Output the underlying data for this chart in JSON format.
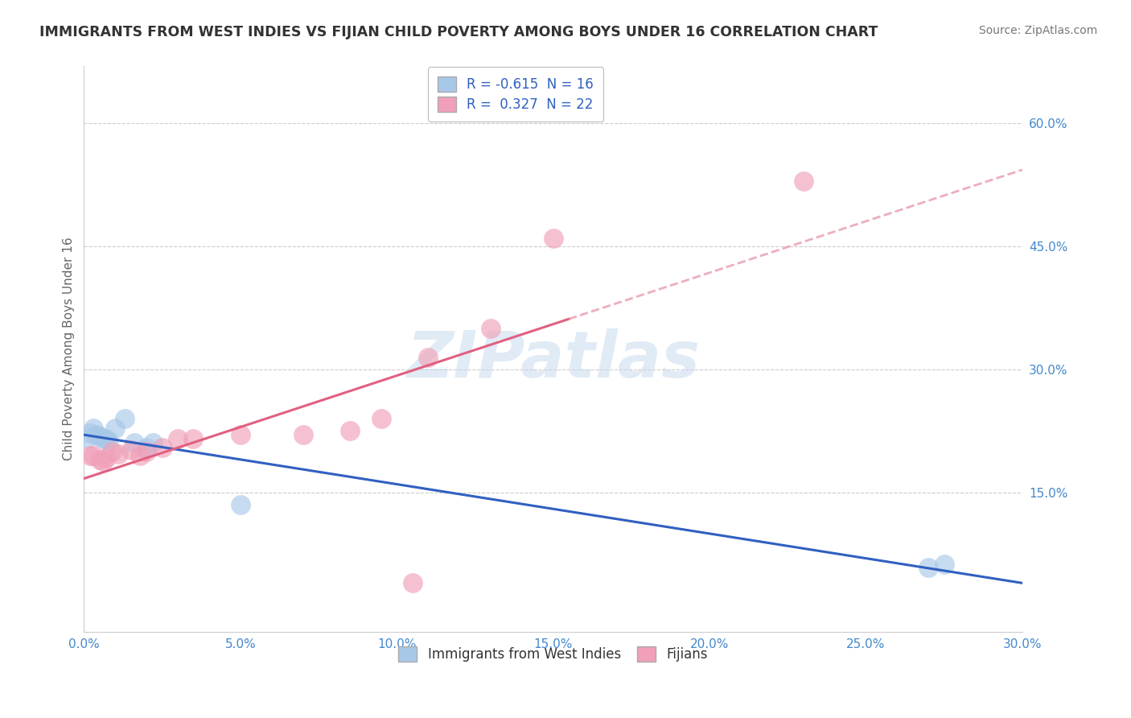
{
  "title": "IMMIGRANTS FROM WEST INDIES VS FIJIAN CHILD POVERTY AMONG BOYS UNDER 16 CORRELATION CHART",
  "source": "Source: ZipAtlas.com",
  "ylabel": "Child Poverty Among Boys Under 16",
  "xlim": [
    0.0,
    0.3
  ],
  "ylim": [
    -0.02,
    0.67
  ],
  "xticks": [
    0.0,
    0.05,
    0.1,
    0.15,
    0.2,
    0.25,
    0.3
  ],
  "xtick_labels": [
    "0.0%",
    "5.0%",
    "10.0%",
    "15.0%",
    "20.0%",
    "25.0%",
    "30.0%"
  ],
  "ytick_vals_right": [
    0.15,
    0.3,
    0.45,
    0.6
  ],
  "ytick_labels_right": [
    "15.0%",
    "30.0%",
    "45.0%",
    "60.0%"
  ],
  "background_color": "#ffffff",
  "blue_scatter_color": "#a8c8e8",
  "pink_scatter_color": "#f0a0b8",
  "blue_line_color": "#3060c0",
  "pink_line_color": "#e06080",
  "pink_dash_color": "#e8a0b0",
  "legend_R_blue": "-0.615",
  "legend_N_blue": "16",
  "legend_R_pink": " 0.327",
  "legend_N_pink": "22",
  "grid_color": "#cccccc",
  "title_color": "#333333",
  "axis_tick_color": "#4488cc",
  "blue_points_x": [
    0.001,
    0.002,
    0.003,
    0.004,
    0.005,
    0.006,
    0.007,
    0.008,
    0.01,
    0.013,
    0.016,
    0.02,
    0.022,
    0.27,
    0.275,
    0.05
  ],
  "blue_points_y": [
    0.215,
    0.222,
    0.228,
    0.22,
    0.218,
    0.215,
    0.215,
    0.212,
    0.228,
    0.24,
    0.21,
    0.205,
    0.21,
    0.058,
    0.062,
    0.135
  ],
  "pink_points_x": [
    0.002,
    0.003,
    0.005,
    0.006,
    0.007,
    0.009,
    0.011,
    0.015,
    0.018,
    0.02,
    0.025,
    0.03,
    0.035,
    0.05,
    0.07,
    0.085,
    0.095,
    0.11,
    0.13,
    0.15,
    0.23,
    0.105
  ],
  "pink_points_y": [
    0.195,
    0.195,
    0.19,
    0.188,
    0.192,
    0.2,
    0.197,
    0.202,
    0.195,
    0.2,
    0.205,
    0.215,
    0.215,
    0.22,
    0.22,
    0.225,
    0.24,
    0.315,
    0.35,
    0.46,
    0.53,
    0.04
  ],
  "watermark_text": "ZIPatlas",
  "watermark_color": "#c5d8ec",
  "watermark_alpha": 0.5
}
